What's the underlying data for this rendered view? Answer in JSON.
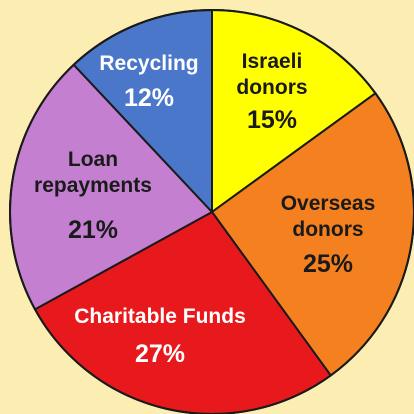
{
  "chart_data": {
    "type": "pie",
    "unit": "%",
    "slices": [
      {
        "label_lines": [
          "Israeli",
          "donors"
        ],
        "value": 15,
        "value_text": "15%",
        "color": "#ffff00",
        "text_color": "#1a1a1a"
      },
      {
        "label_lines": [
          "Overseas",
          "donors"
        ],
        "value": 25,
        "value_text": "25%",
        "color": "#f58020",
        "text_color": "#1a1a1a"
      },
      {
        "label_lines": [
          "Charitable Funds"
        ],
        "value": 27,
        "value_text": "27%",
        "color": "#e8191d",
        "text_color": "#ffffff"
      },
      {
        "label_lines": [
          "Loan",
          "repayments"
        ],
        "value": 21,
        "value_text": "21%",
        "color": "#c47fd1",
        "text_color": "#1a1a1a"
      },
      {
        "label_lines": [
          "Recycling"
        ],
        "value": 12,
        "value_text": "12%",
        "color": "#4a77c9",
        "text_color": "#ffffff"
      }
    ],
    "start": "12 o'clock",
    "direction": "clockwise",
    "legend": "none",
    "background": "#fcedb3",
    "outline_color": "#1a1a1a"
  }
}
